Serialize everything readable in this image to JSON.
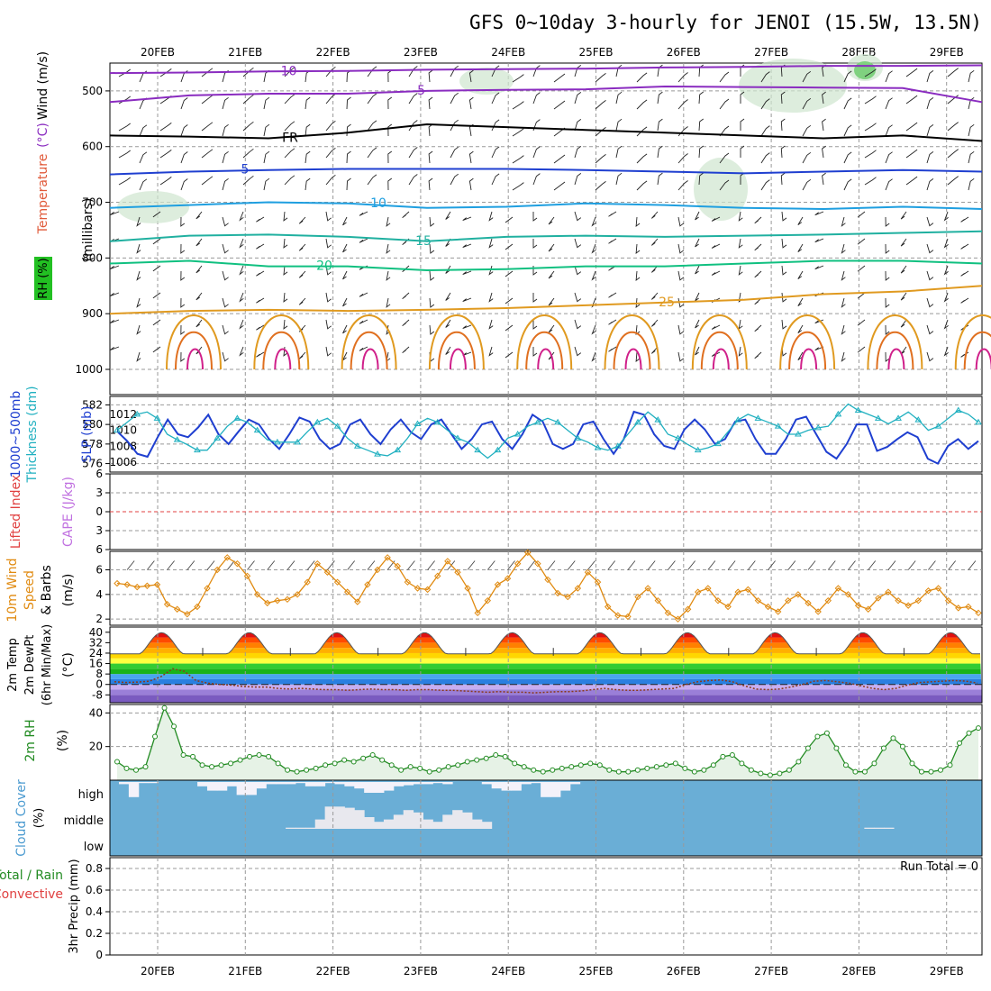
{
  "title": "GFS 0~10day 3-hourly for JENOI (15.5W, 13.5N)",
  "colors": {
    "grid": "#aaaaaa",
    "blue": "#1f3fd0",
    "cyan": "#20b0c0",
    "orange": "#e08a10",
    "green": "#228b22",
    "cloud": "#6aaed6",
    "cloudClear": "#f4f2fa",
    "purple": "#8a2cc0"
  },
  "chart_data": [
    {
      "type": "contour",
      "panel": "upper-air",
      "ylabel_left": [
        "Temperature",
        "(°C)",
        "Wind (m/s)"
      ],
      "ylabel_right": "(millibars)",
      "rh_label": "RH (%)",
      "ylim": [
        450,
        1000
      ],
      "ticks": [
        500,
        600,
        700,
        800,
        900,
        1000
      ],
      "isotherms": [
        {
          "label": "-10",
          "color": "#8a2cc0",
          "values": [
            468,
            467,
            465,
            464,
            462,
            461,
            460,
            458,
            457,
            455,
            455,
            454
          ]
        },
        {
          "label": "-5",
          "color": "#8a2cc0",
          "values": [
            520,
            508,
            505,
            505,
            500,
            498,
            497,
            492,
            493,
            494,
            495,
            520
          ]
        },
        {
          "label": "FR",
          "color": "#000000",
          "values": [
            580,
            582,
            585,
            575,
            560,
            565,
            570,
            575,
            580,
            585,
            580,
            590
          ]
        },
        {
          "label": "5",
          "color": "#1f3fd0",
          "values": [
            650,
            645,
            642,
            640,
            640,
            640,
            642,
            645,
            648,
            645,
            642,
            645
          ]
        },
        {
          "label": "10",
          "color": "#1f9fe0",
          "values": [
            710,
            705,
            700,
            702,
            710,
            708,
            702,
            705,
            710,
            712,
            708,
            712
          ]
        },
        {
          "label": "15",
          "color": "#20b0a0",
          "values": [
            770,
            760,
            758,
            762,
            770,
            762,
            760,
            762,
            760,
            758,
            755,
            752
          ]
        },
        {
          "label": "20",
          "color": "#10c080",
          "values": [
            810,
            805,
            815,
            815,
            822,
            820,
            815,
            815,
            810,
            805,
            805,
            810
          ]
        },
        {
          "label": "25",
          "color": "#e09a20",
          "values": [
            900,
            895,
            893,
            895,
            893,
            890,
            885,
            880,
            875,
            865,
            860,
            850
          ]
        }
      ]
    },
    {
      "type": "line",
      "panel": "thickness-slp",
      "ylabel_left": [
        "1000~500mb",
        "Thickness (dm)"
      ],
      "ylabel_right": "SLP (mb)",
      "left_ticks": [
        576,
        578,
        580,
        582
      ],
      "right_ticks": [
        1006,
        1008,
        1010,
        1012
      ],
      "series": [
        {
          "color": "#1f3fd0",
          "values": [
            579.3,
            578.3,
            577,
            576.7,
            578.7,
            580.5,
            579,
            578.7,
            579.7,
            581,
            579,
            578,
            579.3,
            580.5,
            580,
            578.5,
            577.5,
            579,
            580.7,
            580.3,
            578.5,
            577.5,
            578,
            580,
            580.5,
            579,
            578,
            579.5,
            580.5,
            579.2,
            578.5,
            580,
            580.5,
            579,
            577.5,
            578.5,
            580,
            580.3,
            578.5,
            577.5,
            579,
            581,
            580.3,
            578,
            577.5,
            578,
            580,
            580.3,
            578.5,
            577,
            578.5,
            581.3,
            581,
            579,
            577.8,
            577.5,
            579.5,
            580.5,
            579.5,
            578,
            578.5,
            580.3,
            580.5,
            578.5,
            577,
            577,
            578.5,
            580.5,
            580.8,
            579,
            577.2,
            576.5,
            578,
            580,
            580,
            577.3,
            577.7,
            578.5,
            579.2,
            578.7,
            576.5,
            576,
            577.8,
            578.5,
            577.5,
            578.3
          ]
        },
        {
          "color": "#20b0c0",
          "values": [
            1010,
            1011,
            1012,
            1012.3,
            1011.5,
            1009.5,
            1008.8,
            1008.2,
            1007.5,
            1007.5,
            1009,
            1010.5,
            1011.5,
            1011,
            1010,
            1008.8,
            1008.5,
            1008.5,
            1008.5,
            1009.8,
            1011,
            1011.5,
            1010.5,
            1009,
            1008,
            1007.5,
            1007,
            1006.8,
            1007.5,
            1009,
            1010.8,
            1011.5,
            1011,
            1010,
            1009,
            1008.5,
            1007.5,
            1006.5,
            1007.5,
            1009,
            1009.5,
            1010.5,
            1011,
            1011.5,
            1011,
            1010,
            1009,
            1008.5,
            1007.8,
            1007.5,
            1008,
            1009.5,
            1011,
            1012.3,
            1011.3,
            1009.5,
            1009,
            1008.2,
            1007.5,
            1007.8,
            1008.3,
            1009.8,
            1011.3,
            1012,
            1011.5,
            1011,
            1010.5,
            1009.5,
            1009.5,
            1010,
            1010.3,
            1010.5,
            1012,
            1013.3,
            1012.5,
            1012,
            1011.5,
            1010.8,
            1011.5,
            1012.3,
            1011.3,
            1010,
            1010.5,
            1011.5,
            1012.5,
            1012,
            1011
          ]
        }
      ]
    },
    {
      "type": "line",
      "panel": "cape-li",
      "ylabel_left": "Lifted Index",
      "ylabel_right": "CAPE (J/kg)",
      "ticks": [
        "6",
        "3",
        "0",
        "3",
        "6"
      ],
      "ylim": [
        -6,
        6
      ]
    },
    {
      "type": "line",
      "panel": "wind-10m",
      "ylabel_left": [
        "10m Wind",
        "Speed",
        "& Barbs"
      ],
      "ylabel_right": "(m/s)",
      "ticks": [
        2,
        4,
        6
      ],
      "ylim": [
        1.5,
        7.5
      ],
      "values": [
        4.9,
        4.8,
        4.6,
        4.7,
        4.8,
        3.2,
        2.8,
        2.4,
        3,
        4.5,
        6,
        7,
        6.5,
        5.5,
        4,
        3.3,
        3.5,
        3.6,
        4,
        5,
        6.5,
        5.8,
        5,
        4.2,
        3.4,
        4.8,
        6,
        7,
        6.3,
        5,
        4.5,
        4.4,
        5.5,
        6.7,
        5.8,
        4.5,
        2.5,
        3.5,
        4.8,
        5.3,
        6.5,
        7.4,
        6.5,
        5.2,
        4.1,
        3.8,
        4.5,
        5.8,
        5,
        3,
        2.3,
        2.2,
        3.8,
        4.5,
        3.5,
        2.5,
        2,
        2.8,
        4.2,
        4.5,
        3.5,
        3,
        4.2,
        4.4,
        3.5,
        3,
        2.6,
        3.5,
        4,
        3.3,
        2.6,
        3.5,
        4.5,
        4,
        3.1,
        2.8,
        3.7,
        4.2,
        3.5,
        3.1,
        3.5,
        4.3,
        4.5,
        3.5,
        2.9,
        3,
        2.5
      ]
    },
    {
      "type": "area",
      "panel": "temp-2m",
      "ylabel_left": [
        "2m Temp",
        "2m DewPt",
        "(6hr Min/Max)"
      ],
      "ylabel_right": "(°C)",
      "ticks": [
        -8,
        0,
        8,
        16,
        24,
        32,
        40
      ],
      "ylim": [
        -14,
        44
      ],
      "days": 10,
      "temp_min": 23,
      "temp_max": 40,
      "dewpoint": [
        2,
        1.5,
        1.8,
        2.5,
        6,
        12,
        10,
        3,
        1,
        0,
        -0.5,
        -1.5,
        -2,
        -2,
        -3,
        -3.5,
        -3,
        -3.5,
        -4,
        -4,
        -4.5,
        -4,
        -3.5,
        -4,
        -4,
        -4.5,
        -4,
        -4,
        -4.5,
        -4.5,
        -5,
        -5.5,
        -6,
        -5.5,
        -6,
        -6,
        -6.5,
        -6,
        -5.5,
        -5.5,
        -5,
        -4,
        -3,
        -4,
        -4.5,
        -4.5,
        -4,
        -3.5,
        -3,
        0,
        2,
        3,
        3.5,
        2,
        -1,
        -3.5,
        -4,
        -3.5,
        -2,
        0,
        2.5,
        3,
        2,
        1,
        -1,
        -3,
        -4,
        -3,
        -0.5,
        1.5,
        2,
        2.5,
        3,
        2.5,
        1
      ]
    },
    {
      "type": "line",
      "panel": "rh-2m",
      "ylabel_left": "2m RH",
      "ylabel_right": "(%)",
      "ticks": [
        20,
        40
      ],
      "ylim": [
        0,
        45
      ],
      "values": [
        11,
        7,
        6,
        8,
        26,
        43,
        32,
        15,
        14,
        9,
        8,
        9,
        10,
        12,
        14,
        15,
        14,
        10,
        6,
        5,
        6,
        7,
        9,
        10,
        12,
        11,
        13,
        15,
        12,
        9,
        6,
        8,
        7,
        5,
        6,
        8,
        9,
        11,
        12,
        13,
        15,
        14,
        10,
        8,
        6,
        5,
        6,
        7,
        8,
        9,
        10,
        9,
        6,
        5,
        5,
        6,
        7,
        8,
        9,
        10,
        7,
        5,
        6,
        9,
        14,
        15,
        10,
        6,
        4,
        3,
        4,
        6,
        11,
        19,
        26,
        28,
        19,
        9,
        5,
        5,
        10,
        19,
        25,
        20,
        10,
        5,
        5,
        6,
        9,
        22,
        28,
        31
      ]
    },
    {
      "type": "bar",
      "panel": "cloud",
      "ylabel_left": "Cloud Cover",
      "ylabel_right": "(%)",
      "layers": [
        "high",
        "middle",
        "low"
      ],
      "high": [
        0.9,
        0.3,
        0.95,
        0.95,
        1,
        1,
        1,
        1,
        0.8,
        0.6,
        0.6,
        0.8,
        0.4,
        0.4,
        0.7,
        0.9,
        0.9,
        0.9,
        0.95,
        0.8,
        0.8,
        0.95,
        0.9,
        0.8,
        0.7,
        0.5,
        0.5,
        0.6,
        0.8,
        0.85,
        0.9,
        0.9,
        0.95,
        0.9,
        1,
        1,
        1,
        0.9,
        0.7,
        0.6,
        0.6,
        0.9,
        0.95,
        0.3,
        0.3,
        0.6,
        0.9,
        1,
        1,
        1,
        0,
        0,
        0,
        0,
        0,
        0,
        0,
        0,
        0,
        0,
        0,
        0,
        0,
        0,
        0,
        0,
        0,
        0,
        0,
        0,
        0,
        0,
        0,
        0,
        0,
        0,
        0,
        0,
        0,
        0,
        0,
        0,
        0,
        0,
        0,
        0,
        0,
        0
      ],
      "middle": [
        0,
        0,
        0,
        0,
        0,
        0,
        0,
        0,
        0,
        0,
        0,
        0,
        0,
        0,
        0,
        0,
        0,
        0.05,
        0.05,
        0.05,
        0.4,
        0.95,
        0.95,
        0.9,
        0.8,
        0.5,
        0.3,
        0.4,
        0.6,
        0.8,
        0.7,
        0.4,
        0.3,
        0.6,
        0.8,
        0.7,
        0.4,
        0.3,
        0,
        0,
        0,
        0,
        0,
        0,
        0,
        0,
        0,
        0,
        0,
        0,
        0,
        0,
        0,
        0,
        0,
        0,
        0,
        0,
        0,
        0,
        0,
        0,
        0,
        0,
        0,
        0,
        0,
        0,
        0,
        0,
        0,
        0,
        0,
        0,
        0,
        0,
        0.05,
        0.05,
        0.05,
        0,
        0,
        0,
        0,
        0,
        0,
        0
      ]
    },
    {
      "type": "bar",
      "panel": "precip",
      "ylabel_left": [
        "Total / Rain",
        "Convective"
      ],
      "ylabel_right": "3hr Precip (mm)",
      "ticks": [
        0,
        0.2,
        0.4,
        0.6,
        0.8
      ],
      "ylim": [
        0,
        0.9
      ],
      "annotation": "Run Total = 0",
      "values": []
    }
  ],
  "dates": [
    "20FEB",
    "21FEB",
    "22FEB",
    "23FEB",
    "24FEB",
    "25FEB",
    "26FEB",
    "27FEB",
    "28FEB",
    "29FEB"
  ]
}
